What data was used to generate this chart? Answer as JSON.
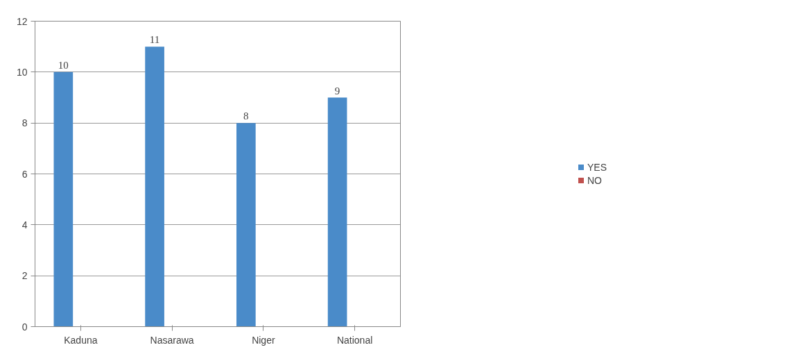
{
  "chart_data": {
    "type": "bar",
    "categories": [
      "Kaduna",
      "Nasarawa",
      "Niger",
      "National"
    ],
    "series": [
      {
        "name": "YES",
        "color": "#4a8bc9",
        "values": [
          10,
          11,
          8,
          9
        ],
        "value_labels": [
          "10",
          "11",
          "8",
          "9"
        ]
      },
      {
        "name": "NO",
        "color": "#c0504d",
        "values": [
          0,
          0,
          0,
          0
        ],
        "value_labels": [
          null,
          null,
          null,
          null
        ]
      }
    ],
    "ylim": [
      0,
      12
    ],
    "yticks": [
      0,
      2,
      4,
      6,
      8,
      10,
      12
    ],
    "grid": "y",
    "legend": "right"
  }
}
